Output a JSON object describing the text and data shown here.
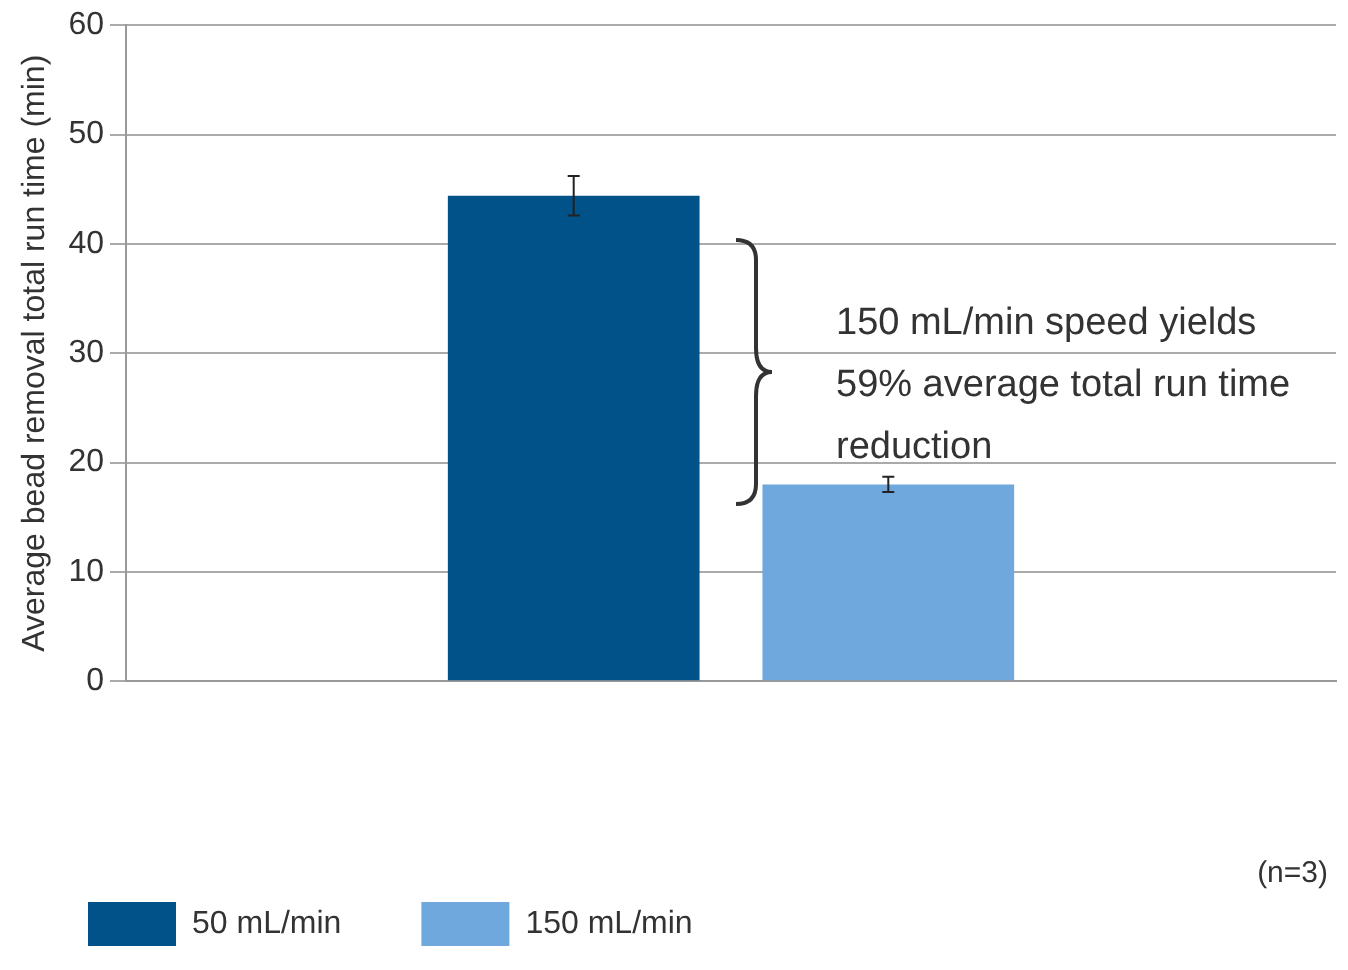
{
  "chart_data": {
    "type": "bar",
    "ylabel": "Average bead removal total run time (min)",
    "categories": [
      null
    ],
    "series": [
      {
        "name": "50 mL/min",
        "color": "#005288",
        "values": [
          44.4
        ],
        "errors": [
          1.8
        ]
      },
      {
        "name": "150 mL/min",
        "color": "#6fa8dc",
        "values": [
          18
        ],
        "errors": [
          0.7
        ]
      }
    ],
    "ylim": [
      0,
      60
    ],
    "yticks": [
      0,
      10,
      20,
      30,
      40,
      50,
      60
    ],
    "grid": "y",
    "legend": "bottom left",
    "annotations": [
      "150 mL/min speed yields 59% average total run time reduction",
      "(n=3)"
    ]
  }
}
